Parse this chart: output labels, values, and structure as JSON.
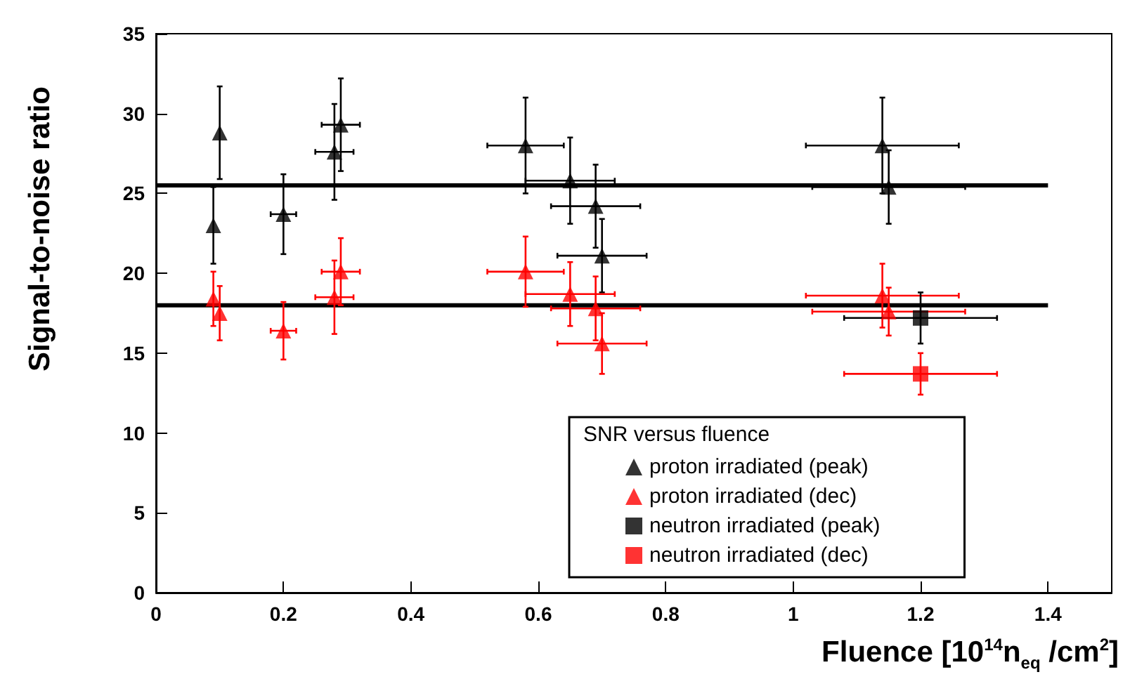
{
  "chart_data": {
    "type": "scatter",
    "xlabel": "Fluence [10$^{14}$n$_{eq}$ /cm$^{2}$]",
    "ylabel": "Signal-to-noise ratio",
    "legend_title": "SNR versus fluence",
    "xlim": [
      0,
      1.5
    ],
    "ylim": [
      0,
      35
    ],
    "xticks": [
      0,
      0.2,
      0.4,
      0.6,
      0.8,
      1,
      1.2,
      1.4
    ],
    "yticks": [
      0,
      5,
      10,
      15,
      20,
      25,
      30,
      35
    ],
    "grid": false,
    "legend": "bottom right",
    "series": [
      {
        "name": "proton irradiated (peak)",
        "color": "#000000",
        "marker": "triangle",
        "x": [
          0.09,
          0.1,
          0.2,
          0.28,
          0.29,
          0.58,
          0.65,
          0.69,
          0.7,
          1.14,
          1.15
        ],
        "values": [
          23,
          28.8,
          23.7,
          27.6,
          29.3,
          28,
          25.8,
          24.2,
          21.1,
          28,
          25.4
        ],
        "errors": [
          2.4,
          2.9,
          2.5,
          3,
          2.9,
          3,
          2.7,
          2.6,
          2.3,
          3,
          2.3
        ],
        "xerrors": [
          null,
          null,
          0.02,
          0.03,
          0.03,
          0.06,
          0.07,
          0.07,
          0.07,
          0.12,
          0.12
        ]
      },
      {
        "name": "proton irradiated (dec)",
        "color": "#ff0000",
        "marker": "triangle",
        "x": [
          0.09,
          0.1,
          0.2,
          0.28,
          0.29,
          0.58,
          0.65,
          0.69,
          0.7,
          1.14,
          1.15
        ],
        "values": [
          18.4,
          17.5,
          16.4,
          18.5,
          20.1,
          20.1,
          18.7,
          17.8,
          15.6,
          18.6,
          17.6
        ],
        "errors": [
          1.7,
          1.7,
          1.8,
          2.3,
          2.1,
          2.2,
          2,
          2,
          1.9,
          2,
          1.5
        ],
        "xerrors": [
          null,
          null,
          0.02,
          0.03,
          0.03,
          0.06,
          0.07,
          0.07,
          0.07,
          0.12,
          0.12
        ]
      },
      {
        "name": "neutron irradiated (peak)",
        "color": "#000000",
        "marker": "square",
        "x": [
          1.2
        ],
        "values": [
          17.2
        ],
        "errors": [
          1.6
        ],
        "xerrors": [
          0.12
        ]
      },
      {
        "name": "neutron irradiated (dec)",
        "color": "#ff0000",
        "marker": "square",
        "x": [
          1.2
        ],
        "values": [
          13.7
        ],
        "errors": [
          1.3
        ],
        "xerrors": [
          0.12
        ]
      },
      {
        "type": "line",
        "color": "#000000",
        "marker": "none",
        "x": [
          0,
          1.4
        ],
        "values": [
          25.5,
          25.5
        ]
      },
      {
        "type": "line",
        "color": "#000000",
        "marker": "none",
        "x": [
          0,
          1.4
        ],
        "values": [
          18,
          18
        ]
      }
    ]
  }
}
